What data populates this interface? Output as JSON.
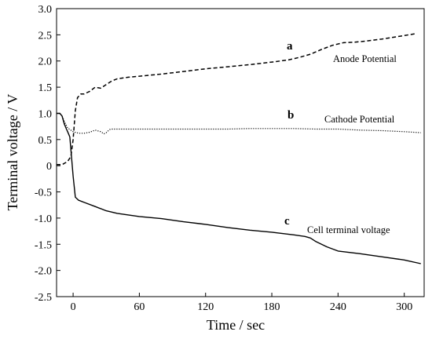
{
  "chart_data": {
    "type": "line",
    "xlabel": "Time / sec",
    "ylabel": "Terminal voltage / V",
    "xlim": [
      -15,
      318
    ],
    "ylim": [
      -2.5,
      3.0
    ],
    "xticks": [
      0,
      60,
      120,
      180,
      240,
      300
    ],
    "xtick_labels": [
      "0",
      "60",
      "120",
      "180",
      "240",
      "300"
    ],
    "yticks": [
      3.0,
      2.5,
      2.0,
      1.5,
      1.0,
      0.5,
      0,
      -0.5,
      -1.0,
      -1.5,
      -2.0,
      -2.5
    ],
    "ytick_labels": [
      "3.0",
      "2.5",
      "2.0",
      "1.5",
      "1.0",
      "0.5",
      "0",
      "-0.5",
      "-1.0",
      "-1.5",
      "-2.0",
      "-2.5"
    ],
    "grid": false,
    "legend": "none",
    "series": [
      {
        "letter": "a",
        "note": "Anode Potential",
        "style": "dashed",
        "color": "#000000",
        "x": [
          -15,
          -10,
          -5,
          -2,
          0,
          2,
          4,
          7,
          10,
          15,
          20,
          25,
          30,
          35,
          40,
          50,
          60,
          80,
          100,
          120,
          140,
          160,
          180,
          195,
          205,
          215,
          225,
          235,
          245,
          255,
          265,
          280,
          295,
          310
        ],
        "y": [
          0.02,
          0.02,
          0.08,
          0.18,
          0.5,
          1.05,
          1.3,
          1.37,
          1.37,
          1.42,
          1.5,
          1.48,
          1.55,
          1.62,
          1.66,
          1.69,
          1.71,
          1.75,
          1.8,
          1.85,
          1.89,
          1.93,
          1.98,
          2.02,
          2.07,
          2.13,
          2.22,
          2.3,
          2.35,
          2.36,
          2.38,
          2.42,
          2.47,
          2.52
        ]
      },
      {
        "letter": "b",
        "note": "Cathode Potential",
        "style": "dotted",
        "color": "#000000",
        "x": [
          -15,
          -12,
          -10,
          -8,
          -5,
          0,
          5,
          10,
          15,
          20,
          25,
          28,
          30,
          33,
          35,
          40,
          60,
          80,
          100,
          120,
          140,
          160,
          180,
          200,
          220,
          240,
          260,
          280,
          300,
          315
        ],
        "y": [
          1.0,
          1.0,
          0.95,
          0.85,
          0.72,
          0.65,
          0.62,
          0.62,
          0.64,
          0.68,
          0.65,
          0.61,
          0.63,
          0.69,
          0.7,
          0.7,
          0.7,
          0.7,
          0.7,
          0.7,
          0.7,
          0.71,
          0.71,
          0.71,
          0.7,
          0.7,
          0.68,
          0.67,
          0.65,
          0.63
        ]
      },
      {
        "letter": "c",
        "note": "Cell terminal voltage",
        "style": "solid",
        "color": "#000000",
        "x": [
          -15,
          -12,
          -10,
          -8,
          -6,
          -5,
          -3,
          -2,
          0,
          2,
          5,
          10,
          20,
          30,
          40,
          60,
          80,
          100,
          120,
          140,
          160,
          180,
          200,
          210,
          215,
          220,
          230,
          240,
          260,
          280,
          300,
          315
        ],
        "y": [
          1.0,
          1.0,
          0.95,
          0.8,
          0.7,
          0.65,
          0.55,
          0.3,
          -0.2,
          -0.6,
          -0.66,
          -0.7,
          -0.78,
          -0.86,
          -0.91,
          -0.97,
          -1.01,
          -1.07,
          -1.12,
          -1.18,
          -1.23,
          -1.27,
          -1.32,
          -1.35,
          -1.38,
          -1.45,
          -1.55,
          -1.63,
          -1.68,
          -1.74,
          -1.8,
          -1.87
        ]
      }
    ]
  }
}
